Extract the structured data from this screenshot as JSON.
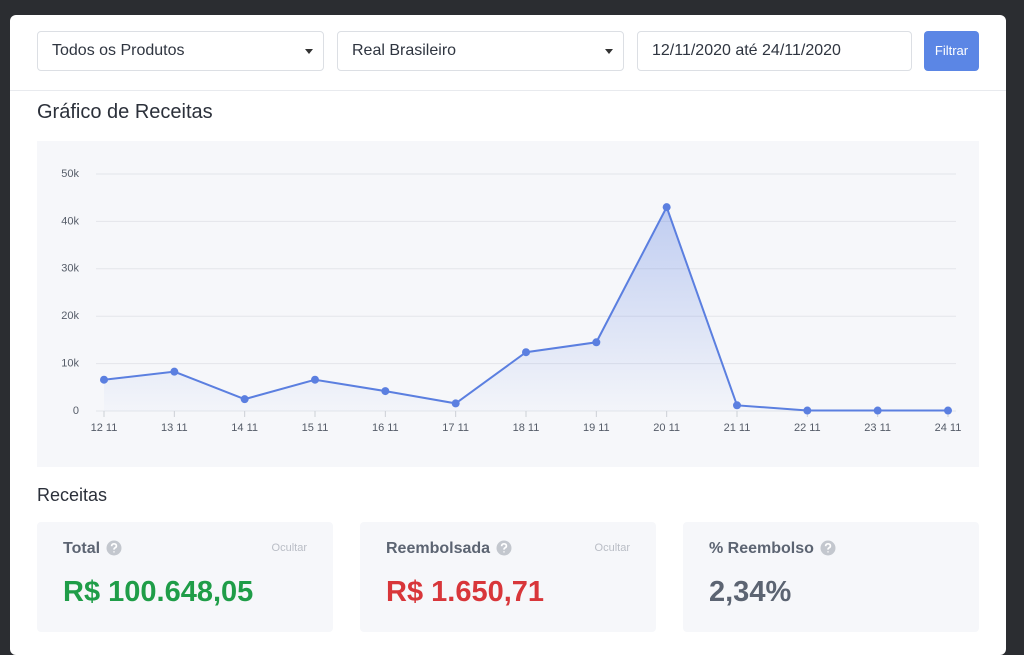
{
  "filters": {
    "product": "Todos os Produtos",
    "currency": "Real Brasileiro",
    "date_range": "12/11/2020 até 24/11/2020",
    "button": "Filtrar"
  },
  "chart_data": {
    "type": "line",
    "title": "Gráfico de Receitas",
    "categories": [
      "12 11",
      "13 11",
      "14 11",
      "15 11",
      "16 11",
      "17 11",
      "18 11",
      "19 11",
      "20 11",
      "21 11",
      "22 11",
      "23 11",
      "24 11"
    ],
    "series": [
      {
        "name": "Receitas",
        "color": "#5b7fe0",
        "values": [
          6600,
          8300,
          2500,
          6600,
          4200,
          1600,
          12400,
          14500,
          43000,
          1200,
          100,
          100,
          100
        ]
      }
    ],
    "ylim": [
      0,
      50000
    ],
    "yticks": [
      0,
      {
        "value": 10000,
        "label": "10k"
      },
      {
        "value": 20000,
        "label": "20k"
      },
      {
        "value": 30000,
        "label": "30k"
      },
      {
        "value": 40000,
        "label": "40k"
      },
      {
        "value": 50000,
        "label": "50k"
      }
    ],
    "grid": true
  },
  "revenue": {
    "title": "Receitas",
    "cards": [
      {
        "label": "Total",
        "action": "Ocultar",
        "value": "R$ 100.648,05",
        "color": "#1f9d48"
      },
      {
        "label": "Reembolsada",
        "action": "Ocultar",
        "value": "R$ 1.650,71",
        "color": "#d8363a"
      },
      {
        "label": "% Reembolso",
        "value": "2,34%",
        "color": "#5c6472"
      }
    ]
  }
}
